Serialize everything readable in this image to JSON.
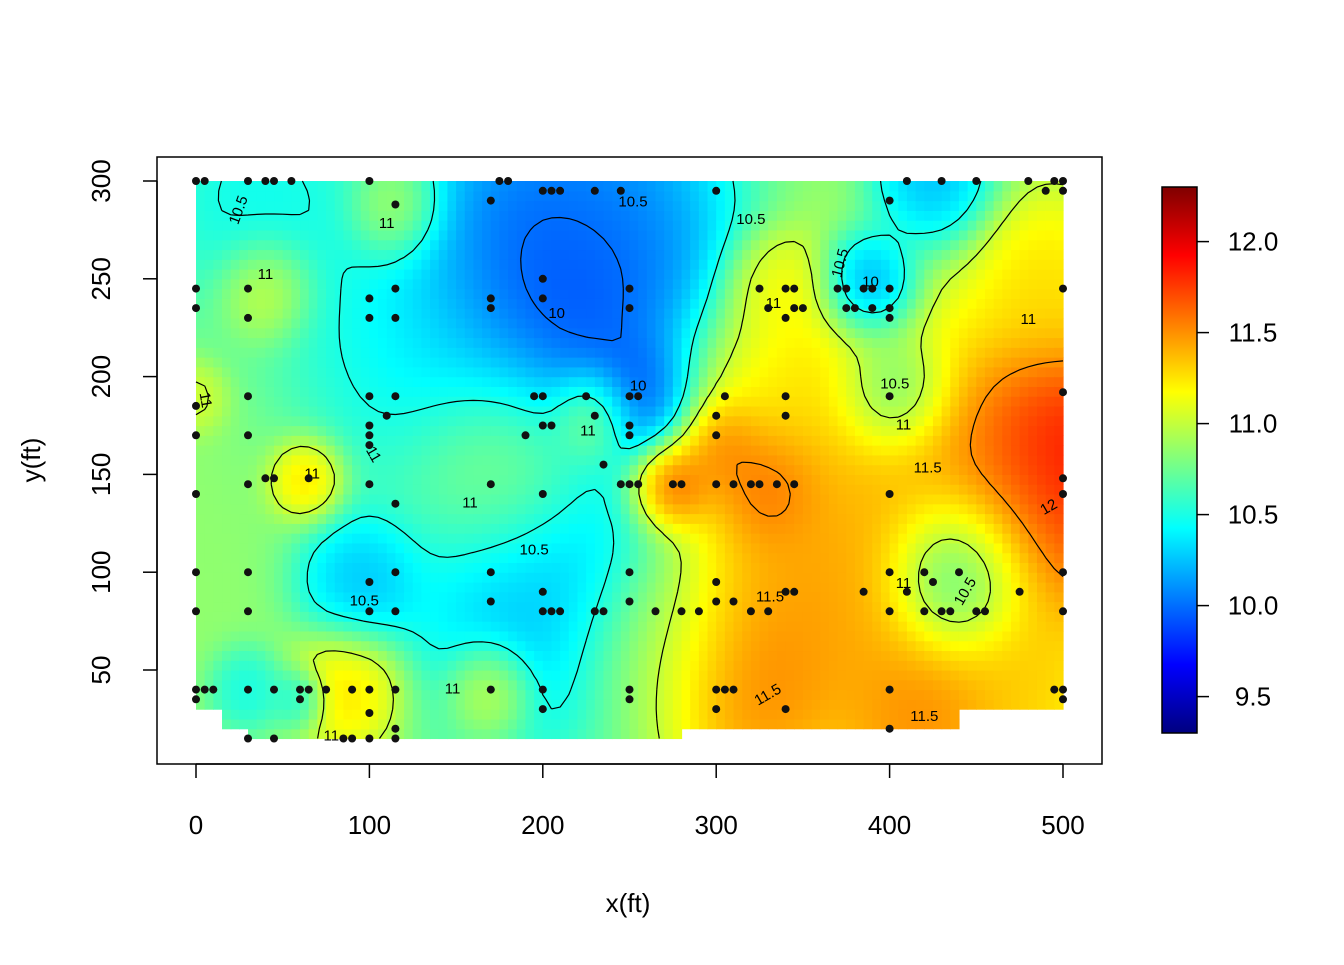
{
  "chart_data": {
    "type": "heatmap",
    "subtype": "interpolated contour map with sample points",
    "title": "",
    "xlabel": "x(ft)",
    "ylabel": "y(ft)",
    "xlim": [
      -22,
      512
    ],
    "ylim": [
      0,
      312
    ],
    "x_ticks": [
      0,
      100,
      200,
      300,
      400,
      500
    ],
    "y_ticks": [
      50,
      100,
      150,
      200,
      250,
      300
    ],
    "data_extent": {
      "x": [
        0,
        500
      ],
      "y": [
        15,
        300
      ]
    },
    "colorbar": {
      "range": [
        9.3,
        12.3
      ],
      "ticks": [
        9.5,
        10.0,
        10.5,
        11.0,
        11.5,
        12.0
      ],
      "tick_labels": [
        "9.5",
        "10.0",
        "10.5",
        "11.0",
        "11.5",
        "12.0"
      ],
      "colormap": [
        "#00007F",
        "#0000FF",
        "#007FFF",
        "#00FFFF",
        "#7FFF7F",
        "#FFFF00",
        "#FF7F00",
        "#FF0000",
        "#7F0000"
      ]
    },
    "contour_levels": [
      10,
      10.5,
      11,
      11.5,
      12
    ],
    "contour_labels": [
      {
        "text": "10.5",
        "x": 25,
        "y": 285,
        "rotate": -70
      },
      {
        "text": "11",
        "x": 110,
        "y": 278,
        "rotate": 0
      },
      {
        "text": "11",
        "x": 40,
        "y": 252,
        "rotate": 0
      },
      {
        "text": "11",
        "x": 5,
        "y": 188,
        "rotate": 80
      },
      {
        "text": "10.5",
        "x": 252,
        "y": 289,
        "rotate": 0
      },
      {
        "text": "10.5",
        "x": 320,
        "y": 280,
        "rotate": 0
      },
      {
        "text": "10",
        "x": 208,
        "y": 232,
        "rotate": 0
      },
      {
        "text": "10",
        "x": 255,
        "y": 195,
        "rotate": 0
      },
      {
        "text": "11",
        "x": 226,
        "y": 172,
        "rotate": 0
      },
      {
        "text": "11",
        "x": 67,
        "y": 150,
        "rotate": 0
      },
      {
        "text": "11",
        "x": 102,
        "y": 160,
        "rotate": 60
      },
      {
        "text": "11",
        "x": 158,
        "y": 135,
        "rotate": 0
      },
      {
        "text": "10.5",
        "x": 195,
        "y": 111,
        "rotate": 0
      },
      {
        "text": "10.5",
        "x": 97,
        "y": 85,
        "rotate": 0
      },
      {
        "text": "11",
        "x": 148,
        "y": 40,
        "rotate": 0
      },
      {
        "text": "11",
        "x": 78,
        "y": 16,
        "rotate": 0
      },
      {
        "text": "11",
        "x": 333,
        "y": 237,
        "rotate": 0
      },
      {
        "text": "10.5",
        "x": 372,
        "y": 258,
        "rotate": -75
      },
      {
        "text": "10",
        "x": 389,
        "y": 248,
        "rotate": 0
      },
      {
        "text": "11",
        "x": 480,
        "y": 229,
        "rotate": 0
      },
      {
        "text": "10.5",
        "x": 403,
        "y": 196,
        "rotate": 0
      },
      {
        "text": "11",
        "x": 408,
        "y": 175,
        "rotate": 0
      },
      {
        "text": "11.5",
        "x": 422,
        "y": 153,
        "rotate": 0
      },
      {
        "text": "12",
        "x": 492,
        "y": 133,
        "rotate": -30
      },
      {
        "text": "11.5",
        "x": 331,
        "y": 87,
        "rotate": 0
      },
      {
        "text": "11",
        "x": 408,
        "y": 94,
        "rotate": 0
      },
      {
        "text": "10.5",
        "x": 444,
        "y": 90,
        "rotate": -60
      },
      {
        "text": "11.5",
        "x": 330,
        "y": 37,
        "rotate": -30
      },
      {
        "text": "11.5",
        "x": 420,
        "y": 26,
        "rotate": 0
      }
    ],
    "sample_points": [
      [
        0,
        300
      ],
      [
        5,
        300
      ],
      [
        30,
        300
      ],
      [
        40,
        300
      ],
      [
        45,
        300
      ],
      [
        55,
        300
      ],
      [
        100,
        300
      ],
      [
        175,
        300
      ],
      [
        180,
        300
      ],
      [
        200,
        295
      ],
      [
        205,
        295
      ],
      [
        210,
        295
      ],
      [
        230,
        295
      ],
      [
        245,
        295
      ],
      [
        300,
        295
      ],
      [
        400,
        290
      ],
      [
        410,
        300
      ],
      [
        430,
        300
      ],
      [
        450,
        300
      ],
      [
        480,
        300
      ],
      [
        490,
        295
      ],
      [
        495,
        300
      ],
      [
        500,
        300
      ],
      [
        500,
        295
      ],
      [
        170,
        290
      ],
      [
        115,
        288
      ],
      [
        200,
        250
      ],
      [
        30,
        245
      ],
      [
        0,
        245
      ],
      [
        0,
        235
      ],
      [
        100,
        240
      ],
      [
        115,
        245
      ],
      [
        170,
        240
      ],
      [
        170,
        235
      ],
      [
        200,
        240
      ],
      [
        250,
        245
      ],
      [
        250,
        235
      ],
      [
        100,
        230
      ],
      [
        115,
        230
      ],
      [
        30,
        230
      ],
      [
        325,
        245
      ],
      [
        340,
        245
      ],
      [
        345,
        245
      ],
      [
        370,
        245
      ],
      [
        375,
        245
      ],
      [
        385,
        245
      ],
      [
        390,
        245
      ],
      [
        400,
        245
      ],
      [
        330,
        235
      ],
      [
        345,
        235
      ],
      [
        350,
        235
      ],
      [
        375,
        235
      ],
      [
        380,
        235
      ],
      [
        390,
        235
      ],
      [
        400,
        235
      ],
      [
        340,
        230
      ],
      [
        400,
        230
      ],
      [
        500,
        245
      ],
      [
        0,
        185
      ],
      [
        0,
        170
      ],
      [
        30,
        190
      ],
      [
        30,
        170
      ],
      [
        100,
        190
      ],
      [
        115,
        190
      ],
      [
        100,
        175
      ],
      [
        100,
        170
      ],
      [
        100,
        165
      ],
      [
        110,
        180
      ],
      [
        195,
        190
      ],
      [
        200,
        190
      ],
      [
        205,
        175
      ],
      [
        200,
        175
      ],
      [
        225,
        190
      ],
      [
        230,
        180
      ],
      [
        250,
        190
      ],
      [
        255,
        190
      ],
      [
        250,
        175
      ],
      [
        250,
        170
      ],
      [
        300,
        180
      ],
      [
        300,
        170
      ],
      [
        305,
        190
      ],
      [
        340,
        190
      ],
      [
        340,
        180
      ],
      [
        400,
        190
      ],
      [
        500,
        192
      ],
      [
        65,
        148
      ],
      [
        40,
        148
      ],
      [
        45,
        148
      ],
      [
        30,
        145
      ],
      [
        100,
        145
      ],
      [
        115,
        135
      ],
      [
        0,
        140
      ],
      [
        170,
        145
      ],
      [
        200,
        140
      ],
      [
        190,
        170
      ],
      [
        245,
        145
      ],
      [
        250,
        145
      ],
      [
        255,
        145
      ],
      [
        275,
        145
      ],
      [
        280,
        145
      ],
      [
        300,
        145
      ],
      [
        310,
        145
      ],
      [
        320,
        145
      ],
      [
        325,
        145
      ],
      [
        335,
        145
      ],
      [
        345,
        145
      ],
      [
        400,
        140
      ],
      [
        500,
        148
      ],
      [
        500,
        140
      ],
      [
        235,
        155
      ],
      [
        0,
        100
      ],
      [
        30,
        100
      ],
      [
        0,
        80
      ],
      [
        30,
        80
      ],
      [
        100,
        95
      ],
      [
        115,
        100
      ],
      [
        115,
        80
      ],
      [
        100,
        80
      ],
      [
        170,
        100
      ],
      [
        170,
        85
      ],
      [
        200,
        90
      ],
      [
        200,
        80
      ],
      [
        205,
        80
      ],
      [
        210,
        80
      ],
      [
        230,
        80
      ],
      [
        235,
        80
      ],
      [
        250,
        85
      ],
      [
        250,
        100
      ],
      [
        265,
        80
      ],
      [
        280,
        80
      ],
      [
        290,
        80
      ],
      [
        300,
        95
      ],
      [
        300,
        85
      ],
      [
        310,
        85
      ],
      [
        320,
        80
      ],
      [
        330,
        80
      ],
      [
        340,
        90
      ],
      [
        345,
        90
      ],
      [
        385,
        90
      ],
      [
        400,
        100
      ],
      [
        400,
        80
      ],
      [
        410,
        90
      ],
      [
        420,
        80
      ],
      [
        430,
        80
      ],
      [
        435,
        80
      ],
      [
        440,
        100
      ],
      [
        450,
        80
      ],
      [
        455,
        80
      ],
      [
        475,
        90
      ],
      [
        500,
        100
      ],
      [
        500,
        80
      ],
      [
        420,
        100
      ],
      [
        425,
        95
      ],
      [
        0,
        40
      ],
      [
        5,
        40
      ],
      [
        10,
        40
      ],
      [
        0,
        35
      ],
      [
        30,
        40
      ],
      [
        45,
        40
      ],
      [
        60,
        40
      ],
      [
        65,
        40
      ],
      [
        60,
        35
      ],
      [
        75,
        40
      ],
      [
        90,
        40
      ],
      [
        100,
        40
      ],
      [
        115,
        40
      ],
      [
        170,
        40
      ],
      [
        200,
        40
      ],
      [
        200,
        30
      ],
      [
        100,
        28
      ],
      [
        250,
        40
      ],
      [
        250,
        35
      ],
      [
        300,
        40
      ],
      [
        305,
        40
      ],
      [
        310,
        40
      ],
      [
        300,
        30
      ],
      [
        340,
        30
      ],
      [
        400,
        40
      ],
      [
        400,
        20
      ],
      [
        500,
        40
      ],
      [
        500,
        35
      ],
      [
        495,
        40
      ],
      [
        30,
        15
      ],
      [
        45,
        15
      ],
      [
        85,
        15
      ],
      [
        90,
        15
      ],
      [
        100,
        15
      ],
      [
        115,
        20
      ],
      [
        115,
        15
      ]
    ]
  }
}
